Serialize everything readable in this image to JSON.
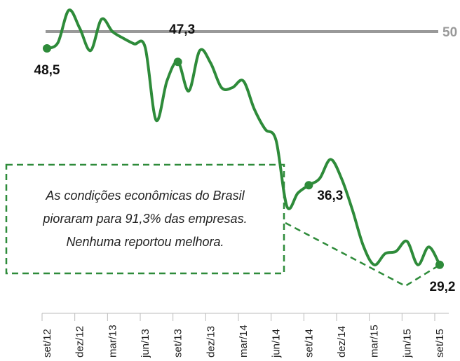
{
  "chart_data": {
    "type": "line",
    "categories": [
      "set/12",
      null,
      null,
      "dez/12",
      null,
      null,
      "mar/13",
      null,
      null,
      "jun/13",
      null,
      null,
      "set/13",
      null,
      null,
      "dez/13",
      null,
      null,
      "mar/14",
      null,
      null,
      "jun/14",
      null,
      null,
      "set/14",
      null,
      null,
      "dez/14",
      null,
      null,
      "mar/15",
      null,
      null,
      "jun/15",
      null,
      null,
      "set/15"
    ],
    "values": [
      48.5,
      49.0,
      51.9,
      50.3,
      48.3,
      51.1,
      50.0,
      49.4,
      48.9,
      48.6,
      42.1,
      45.6,
      47.3,
      44.7,
      48.3,
      47.2,
      45.0,
      45.0,
      45.6,
      43.1,
      41.3,
      40.3,
      34.4,
      35.6,
      36.3,
      36.9,
      38.6,
      36.9,
      34.1,
      30.9,
      29.2,
      30.2,
      30.4,
      31.3,
      29.2,
      30.8,
      29.2
    ],
    "value_labels": [
      "48,5",
      null,
      null,
      null,
      null,
      null,
      null,
      null,
      null,
      null,
      null,
      null,
      "47,3",
      null,
      null,
      null,
      null,
      null,
      null,
      null,
      null,
      null,
      null,
      null,
      "36,3",
      null,
      null,
      null,
      null,
      null,
      null,
      null,
      null,
      null,
      null,
      null,
      "29,2"
    ],
    "color": "#2e8b3a",
    "ylim": [
      27,
      53
    ],
    "reference_line": 50,
    "reference_color": "#999999",
    "annotation": [
      "As condições econômicas do Brasil",
      "pioraram para 91,3% das empresas.",
      "Nenhuma reportou melhora."
    ]
  }
}
